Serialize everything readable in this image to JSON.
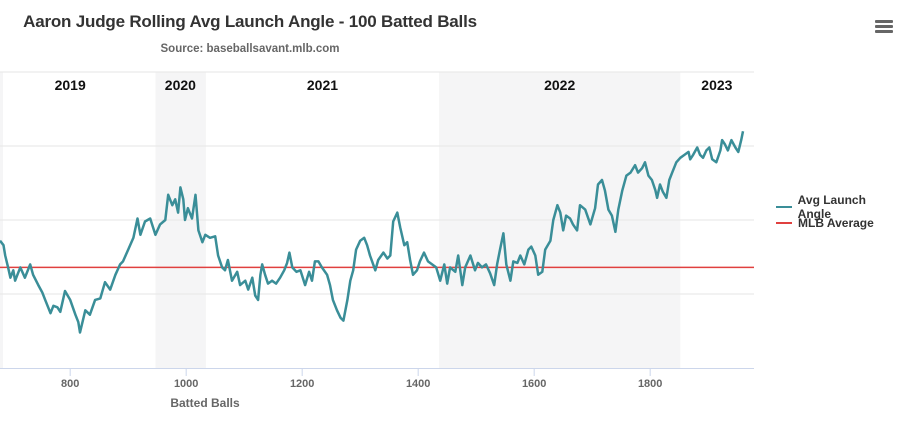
{
  "header": {
    "title": "Aaron Judge Rolling Avg Launch Angle - 100 Batted Balls",
    "subtitle": "Source: baseballsavant.mlb.com",
    "menu_icon": "hamburger-menu-icon"
  },
  "colors": {
    "series": "#3a8e98",
    "mlb_average": "#e0403f",
    "band": "#f5f5f6",
    "grid": "#e6e6e6",
    "axis": "#ccd6eb"
  },
  "chart_data": {
    "type": "line",
    "title": "Aaron Judge Rolling Avg Launch Angle - 100 Batted Balls",
    "subtitle": "Source: baseballsavant.mlb.com",
    "xlabel": "Batted Balls",
    "ylabel": "",
    "xlim": [
      679,
      1979
    ],
    "ylim": [
      5,
      25
    ],
    "x_ticks": [
      800,
      1000,
      1200,
      1400,
      1600,
      1800
    ],
    "y_gridlines": [
      5,
      10,
      15,
      20,
      25
    ],
    "y_tick_labels_visible": false,
    "grid": true,
    "legend": {
      "position": "right",
      "entries": [
        "Avg Launch Angle",
        "MLB Average"
      ]
    },
    "mlb_average": 11.8,
    "season_bands": [
      {
        "label": "2019",
        "from": 679,
        "to": 946,
        "shaded": false,
        "label_at": 800
      },
      {
        "label": "2020",
        "from": 947,
        "to": 1034,
        "shaded": true,
        "label_at": 990
      },
      {
        "label": "2021",
        "from": 1034,
        "to": 1436,
        "shaded": false,
        "label_at": 1235
      },
      {
        "label": "2022",
        "from": 1436,
        "to": 1852,
        "shaded": true,
        "label_at": 1644
      },
      {
        "label": "2023",
        "from": 1852,
        "to": 1979,
        "shaded": false,
        "label_at": 1915
      }
    ],
    "series": [
      {
        "name": "Avg Launch Angle",
        "x": [
          679,
          685,
          688,
          693,
          697,
          702,
          705,
          714,
          722,
          731,
          736,
          745,
          752,
          757,
          766,
          771,
          778,
          783,
          791,
          800,
          809,
          814,
          817,
          826,
          834,
          843,
          852,
          860,
          869,
          878,
          886,
          891,
          900,
          909,
          916,
          921,
          929,
          938,
          947,
          955,
          964,
          969,
          976,
          981,
          986,
          990,
          995,
          998,
          1003,
          1010,
          1016,
          1021,
          1028,
          1033,
          1041,
          1050,
          1055,
          1062,
          1067,
          1072,
          1079,
          1088,
          1093,
          1102,
          1107,
          1114,
          1119,
          1124,
          1128,
          1131,
          1136,
          1141,
          1148,
          1155,
          1162,
          1169,
          1174,
          1178,
          1183,
          1190,
          1197,
          1205,
          1212,
          1217,
          1222,
          1228,
          1234,
          1243,
          1248,
          1253,
          1260,
          1266,
          1271,
          1278,
          1283,
          1288,
          1293,
          1300,
          1307,
          1312,
          1317,
          1326,
          1331,
          1340,
          1347,
          1352,
          1357,
          1364,
          1369,
          1376,
          1381,
          1386,
          1391,
          1398,
          1403,
          1410,
          1417,
          1424,
          1431,
          1438,
          1445,
          1450,
          1455,
          1464,
          1469,
          1476,
          1481,
          1490,
          1498,
          1503,
          1510,
          1517,
          1524,
          1531,
          1536,
          1541,
          1547,
          1552,
          1559,
          1564,
          1571,
          1576,
          1583,
          1590,
          1595,
          1602,
          1607,
          1614,
          1619,
          1628,
          1633,
          1640,
          1645,
          1650,
          1655,
          1662,
          1667,
          1674,
          1679,
          1688,
          1697,
          1705,
          1710,
          1717,
          1722,
          1728,
          1734,
          1740,
          1745,
          1752,
          1759,
          1766,
          1774,
          1779,
          1786,
          1791,
          1797,
          1803,
          1809,
          1812,
          1817,
          1822,
          1828,
          1833,
          1838,
          1845,
          1852,
          1859,
          1866,
          1869,
          1874,
          1881,
          1886,
          1891,
          1897,
          1902,
          1907,
          1914,
          1921,
          1924,
          1929,
          1934,
          1940,
          1947,
          1952,
          1957,
          1960
        ],
        "y": [
          13.6,
          13.3,
          12.6,
          11.8,
          11.1,
          11.6,
          10.9,
          11.8,
          11.1,
          12.0,
          11.3,
          10.6,
          10.1,
          9.6,
          8.7,
          9.2,
          9.1,
          8.8,
          10.2,
          9.6,
          8.6,
          8.1,
          7.4,
          8.9,
          8.6,
          9.6,
          9.7,
          10.8,
          10.3,
          11.3,
          12.0,
          12.2,
          13.0,
          13.8,
          15.1,
          14.0,
          14.9,
          15.1,
          14.0,
          14.7,
          15.0,
          16.7,
          16.0,
          16.4,
          15.5,
          17.2,
          16.4,
          15.0,
          15.8,
          15.1,
          16.7,
          14.3,
          13.5,
          14.0,
          13.8,
          13.9,
          12.6,
          11.8,
          11.6,
          12.3,
          10.9,
          11.5,
          10.6,
          10.9,
          10.3,
          11.1,
          9.9,
          9.6,
          11.3,
          12.0,
          11.3,
          10.7,
          10.9,
          10.7,
          11.1,
          11.6,
          12.1,
          12.8,
          11.8,
          11.5,
          11.6,
          10.6,
          11.5,
          10.9,
          12.2,
          12.2,
          11.8,
          11.3,
          10.6,
          9.6,
          8.9,
          8.4,
          8.2,
          9.6,
          10.9,
          11.6,
          13.0,
          13.6,
          13.8,
          13.3,
          12.6,
          11.6,
          12.3,
          12.8,
          12.4,
          12.6,
          14.9,
          15.5,
          14.5,
          13.3,
          13.5,
          12.3,
          11.3,
          11.6,
          12.2,
          12.8,
          12.2,
          12.0,
          11.8,
          10.9,
          12.0,
          10.7,
          11.8,
          11.5,
          12.6,
          10.6,
          11.8,
          12.6,
          11.6,
          12.1,
          11.8,
          12.0,
          11.4,
          10.6,
          12.0,
          13.0,
          14.1,
          12.0,
          10.9,
          12.2,
          12.1,
          12.6,
          12.0,
          13.0,
          13.2,
          12.6,
          11.3,
          11.5,
          13.0,
          13.6,
          15.0,
          16.0,
          15.5,
          14.3,
          15.3,
          15.1,
          14.7,
          14.3,
          16.0,
          15.7,
          14.7,
          15.8,
          17.4,
          17.7,
          17.0,
          15.7,
          15.3,
          14.2,
          15.7,
          17.0,
          18.0,
          18.2,
          18.7,
          18.2,
          18.5,
          18.9,
          18.0,
          17.7,
          17.0,
          16.5,
          17.4,
          16.9,
          16.5,
          17.7,
          18.2,
          18.9,
          19.2,
          19.4,
          19.6,
          19.1,
          19.4,
          19.9,
          19.4,
          19.2,
          19.7,
          19.9,
          19.1,
          18.9,
          19.7,
          20.4,
          20.1,
          19.7,
          20.4,
          19.9,
          19.6,
          20.4,
          21.0
        ]
      },
      {
        "name": "MLB Average",
        "x": [
          679,
          1979
        ],
        "y": [
          11.8,
          11.8
        ]
      }
    ]
  }
}
